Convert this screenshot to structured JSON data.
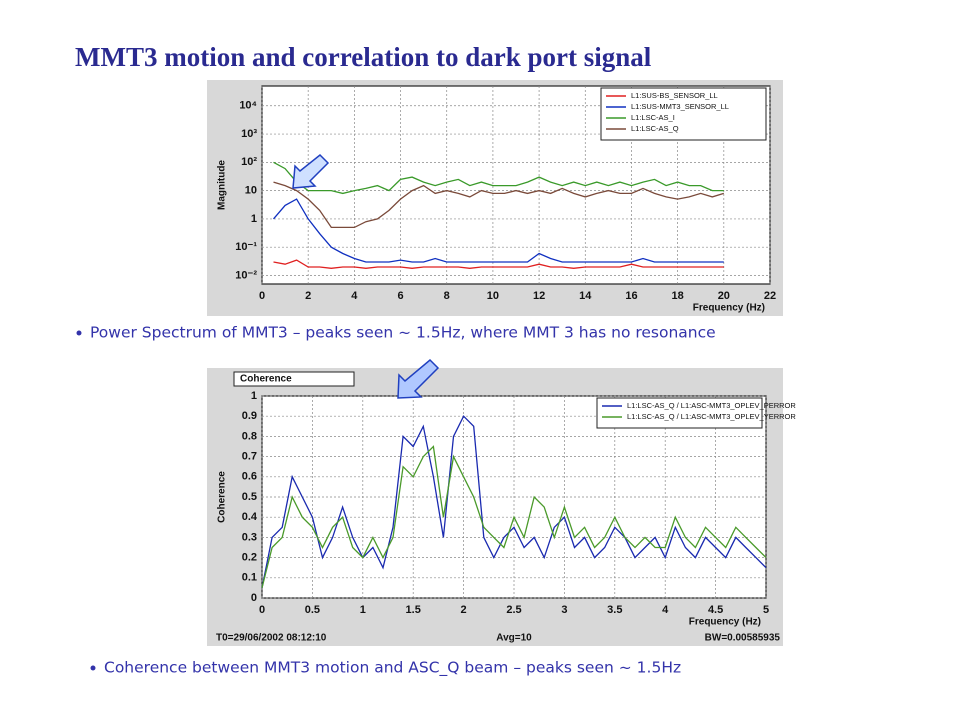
{
  "title": "MMT3 motion and correlation to dark port signal",
  "bullets": [
    "Power Spectrum of MMT3 – peaks seen ~ 1.5Hz, where MMT 3 has no resonance",
    "Coherence between MMT3 motion and ASC_Q beam – peaks seen ~ 1.5Hz"
  ],
  "chart_data": [
    {
      "type": "line",
      "log_y": true,
      "xlabel": "Frequency (Hz)",
      "ylabel": "Magnitude",
      "xlim": [
        0,
        22
      ],
      "xticks": [
        0,
        2,
        4,
        6,
        8,
        10,
        12,
        14,
        16,
        18,
        20,
        22
      ],
      "ylim": [
        0.005,
        50000
      ],
      "yticks": [
        {
          "value": 0.01,
          "label": "10⁻²"
        },
        {
          "value": 0.1,
          "label": "10⁻¹"
        },
        1,
        10,
        {
          "value": 100,
          "label": "10²"
        },
        {
          "value": 1000,
          "label": "10³"
        },
        {
          "value": 10000,
          "label": "10⁴"
        }
      ],
      "grid": true,
      "legend": "top-right",
      "x": [
        0.5,
        1,
        1.5,
        2,
        2.5,
        3,
        3.5,
        4,
        4.5,
        5,
        5.5,
        6,
        6.5,
        7,
        7.5,
        8,
        8.5,
        9,
        9.5,
        10,
        10.5,
        11,
        11.5,
        12,
        12.5,
        13,
        13.5,
        14,
        14.5,
        15,
        15.5,
        16,
        16.5,
        17,
        17.5,
        18,
        18.5,
        19,
        19.5,
        20
      ],
      "series": [
        {
          "name": "L1:SUS-BS_SENSOR_LL",
          "color": "#e02020",
          "values": [
            0.03,
            0.025,
            0.035,
            0.02,
            0.02,
            0.018,
            0.02,
            0.02,
            0.018,
            0.02,
            0.02,
            0.02,
            0.018,
            0.02,
            0.02,
            0.02,
            0.02,
            0.018,
            0.02,
            0.02,
            0.02,
            0.02,
            0.02,
            0.025,
            0.02,
            0.02,
            0.018,
            0.02,
            0.02,
            0.02,
            0.02,
            0.025,
            0.02,
            0.02,
            0.02,
            0.02,
            0.02,
            0.02,
            0.02,
            0.02
          ]
        },
        {
          "name": "L1:SUS-MMT3_SENSOR_LL",
          "color": "#1030c0",
          "values": [
            1,
            3,
            5,
            1,
            0.3,
            0.1,
            0.06,
            0.04,
            0.03,
            0.03,
            0.03,
            0.035,
            0.03,
            0.03,
            0.04,
            0.03,
            0.03,
            0.03,
            0.03,
            0.03,
            0.03,
            0.03,
            0.03,
            0.06,
            0.04,
            0.03,
            0.03,
            0.03,
            0.03,
            0.03,
            0.03,
            0.03,
            0.04,
            0.03,
            0.03,
            0.03,
            0.03,
            0.03,
            0.03,
            0.03
          ]
        },
        {
          "name": "L1:LSC-AS_I",
          "color": "#3a9a2a",
          "values": [
            100,
            60,
            20,
            10,
            10,
            10,
            8,
            10,
            12,
            15,
            10,
            25,
            30,
            20,
            15,
            20,
            25,
            15,
            20,
            15,
            15,
            15,
            20,
            30,
            20,
            15,
            20,
            15,
            20,
            15,
            20,
            15,
            20,
            25,
            15,
            20,
            15,
            15,
            10,
            10
          ]
        },
        {
          "name": "L1:LSC-AS_Q",
          "color": "#7a4a3a",
          "values": [
            20,
            15,
            10,
            5,
            2,
            0.5,
            0.5,
            0.5,
            0.8,
            1,
            2,
            5,
            10,
            15,
            8,
            10,
            8,
            6,
            10,
            8,
            8,
            10,
            8,
            10,
            8,
            12,
            8,
            6,
            8,
            10,
            8,
            8,
            12,
            8,
            6,
            5,
            6,
            8,
            6,
            8
          ]
        }
      ]
    },
    {
      "type": "line",
      "title": "Coherence",
      "xlabel": "Frequency (Hz)",
      "ylabel": "Coherence",
      "xlim": [
        0,
        5
      ],
      "xticks": [
        0,
        0.5,
        1,
        1.5,
        2,
        2.5,
        3,
        3.5,
        4,
        4.5,
        5
      ],
      "ylim": [
        0,
        1
      ],
      "yticks": [
        0,
        0.1,
        0.2,
        0.3,
        0.4,
        0.5,
        0.6,
        0.7,
        0.8,
        0.9,
        1
      ],
      "grid": true,
      "legend": "top-right",
      "footer": [
        "T0=29/06/2002 08:12:10",
        "Avg=10",
        "BW=0.00585935"
      ],
      "x": [
        0,
        0.1,
        0.2,
        0.3,
        0.4,
        0.5,
        0.6,
        0.7,
        0.8,
        0.9,
        1,
        1.1,
        1.2,
        1.3,
        1.4,
        1.5,
        1.6,
        1.7,
        1.8,
        1.9,
        2,
        2.1,
        2.2,
        2.3,
        2.4,
        2.5,
        2.6,
        2.7,
        2.8,
        2.9,
        3,
        3.1,
        3.2,
        3.3,
        3.4,
        3.5,
        3.6,
        3.7,
        3.8,
        3.9,
        4,
        4.1,
        4.2,
        4.3,
        4.4,
        4.5,
        4.6,
        4.7,
        4.8,
        4.9,
        5
      ],
      "series": [
        {
          "name": "L1:LSC-AS_Q / L1:ASC-MMT3_OPLEV_PERROR",
          "color": "#1a2ab0",
          "values": [
            0.05,
            0.3,
            0.35,
            0.6,
            0.5,
            0.4,
            0.2,
            0.3,
            0.45,
            0.3,
            0.2,
            0.25,
            0.15,
            0.35,
            0.8,
            0.75,
            0.85,
            0.6,
            0.3,
            0.8,
            0.9,
            0.85,
            0.3,
            0.2,
            0.3,
            0.35,
            0.25,
            0.3,
            0.2,
            0.35,
            0.4,
            0.25,
            0.3,
            0.2,
            0.25,
            0.35,
            0.3,
            0.2,
            0.25,
            0.3,
            0.2,
            0.35,
            0.25,
            0.2,
            0.3,
            0.25,
            0.2,
            0.3,
            0.25,
            0.2,
            0.15
          ]
        },
        {
          "name": "L1:LSC-AS_Q / L1:ASC-MMT3_OPLEV_YERROR",
          "color": "#4a9a2a",
          "values": [
            0.05,
            0.25,
            0.3,
            0.5,
            0.4,
            0.35,
            0.25,
            0.35,
            0.4,
            0.25,
            0.2,
            0.3,
            0.2,
            0.3,
            0.65,
            0.6,
            0.7,
            0.75,
            0.4,
            0.7,
            0.6,
            0.5,
            0.35,
            0.3,
            0.25,
            0.4,
            0.3,
            0.5,
            0.45,
            0.3,
            0.45,
            0.3,
            0.35,
            0.25,
            0.3,
            0.4,
            0.3,
            0.25,
            0.3,
            0.25,
            0.25,
            0.4,
            0.3,
            0.25,
            0.35,
            0.3,
            0.25,
            0.35,
            0.3,
            0.25,
            0.2
          ]
        }
      ]
    }
  ]
}
